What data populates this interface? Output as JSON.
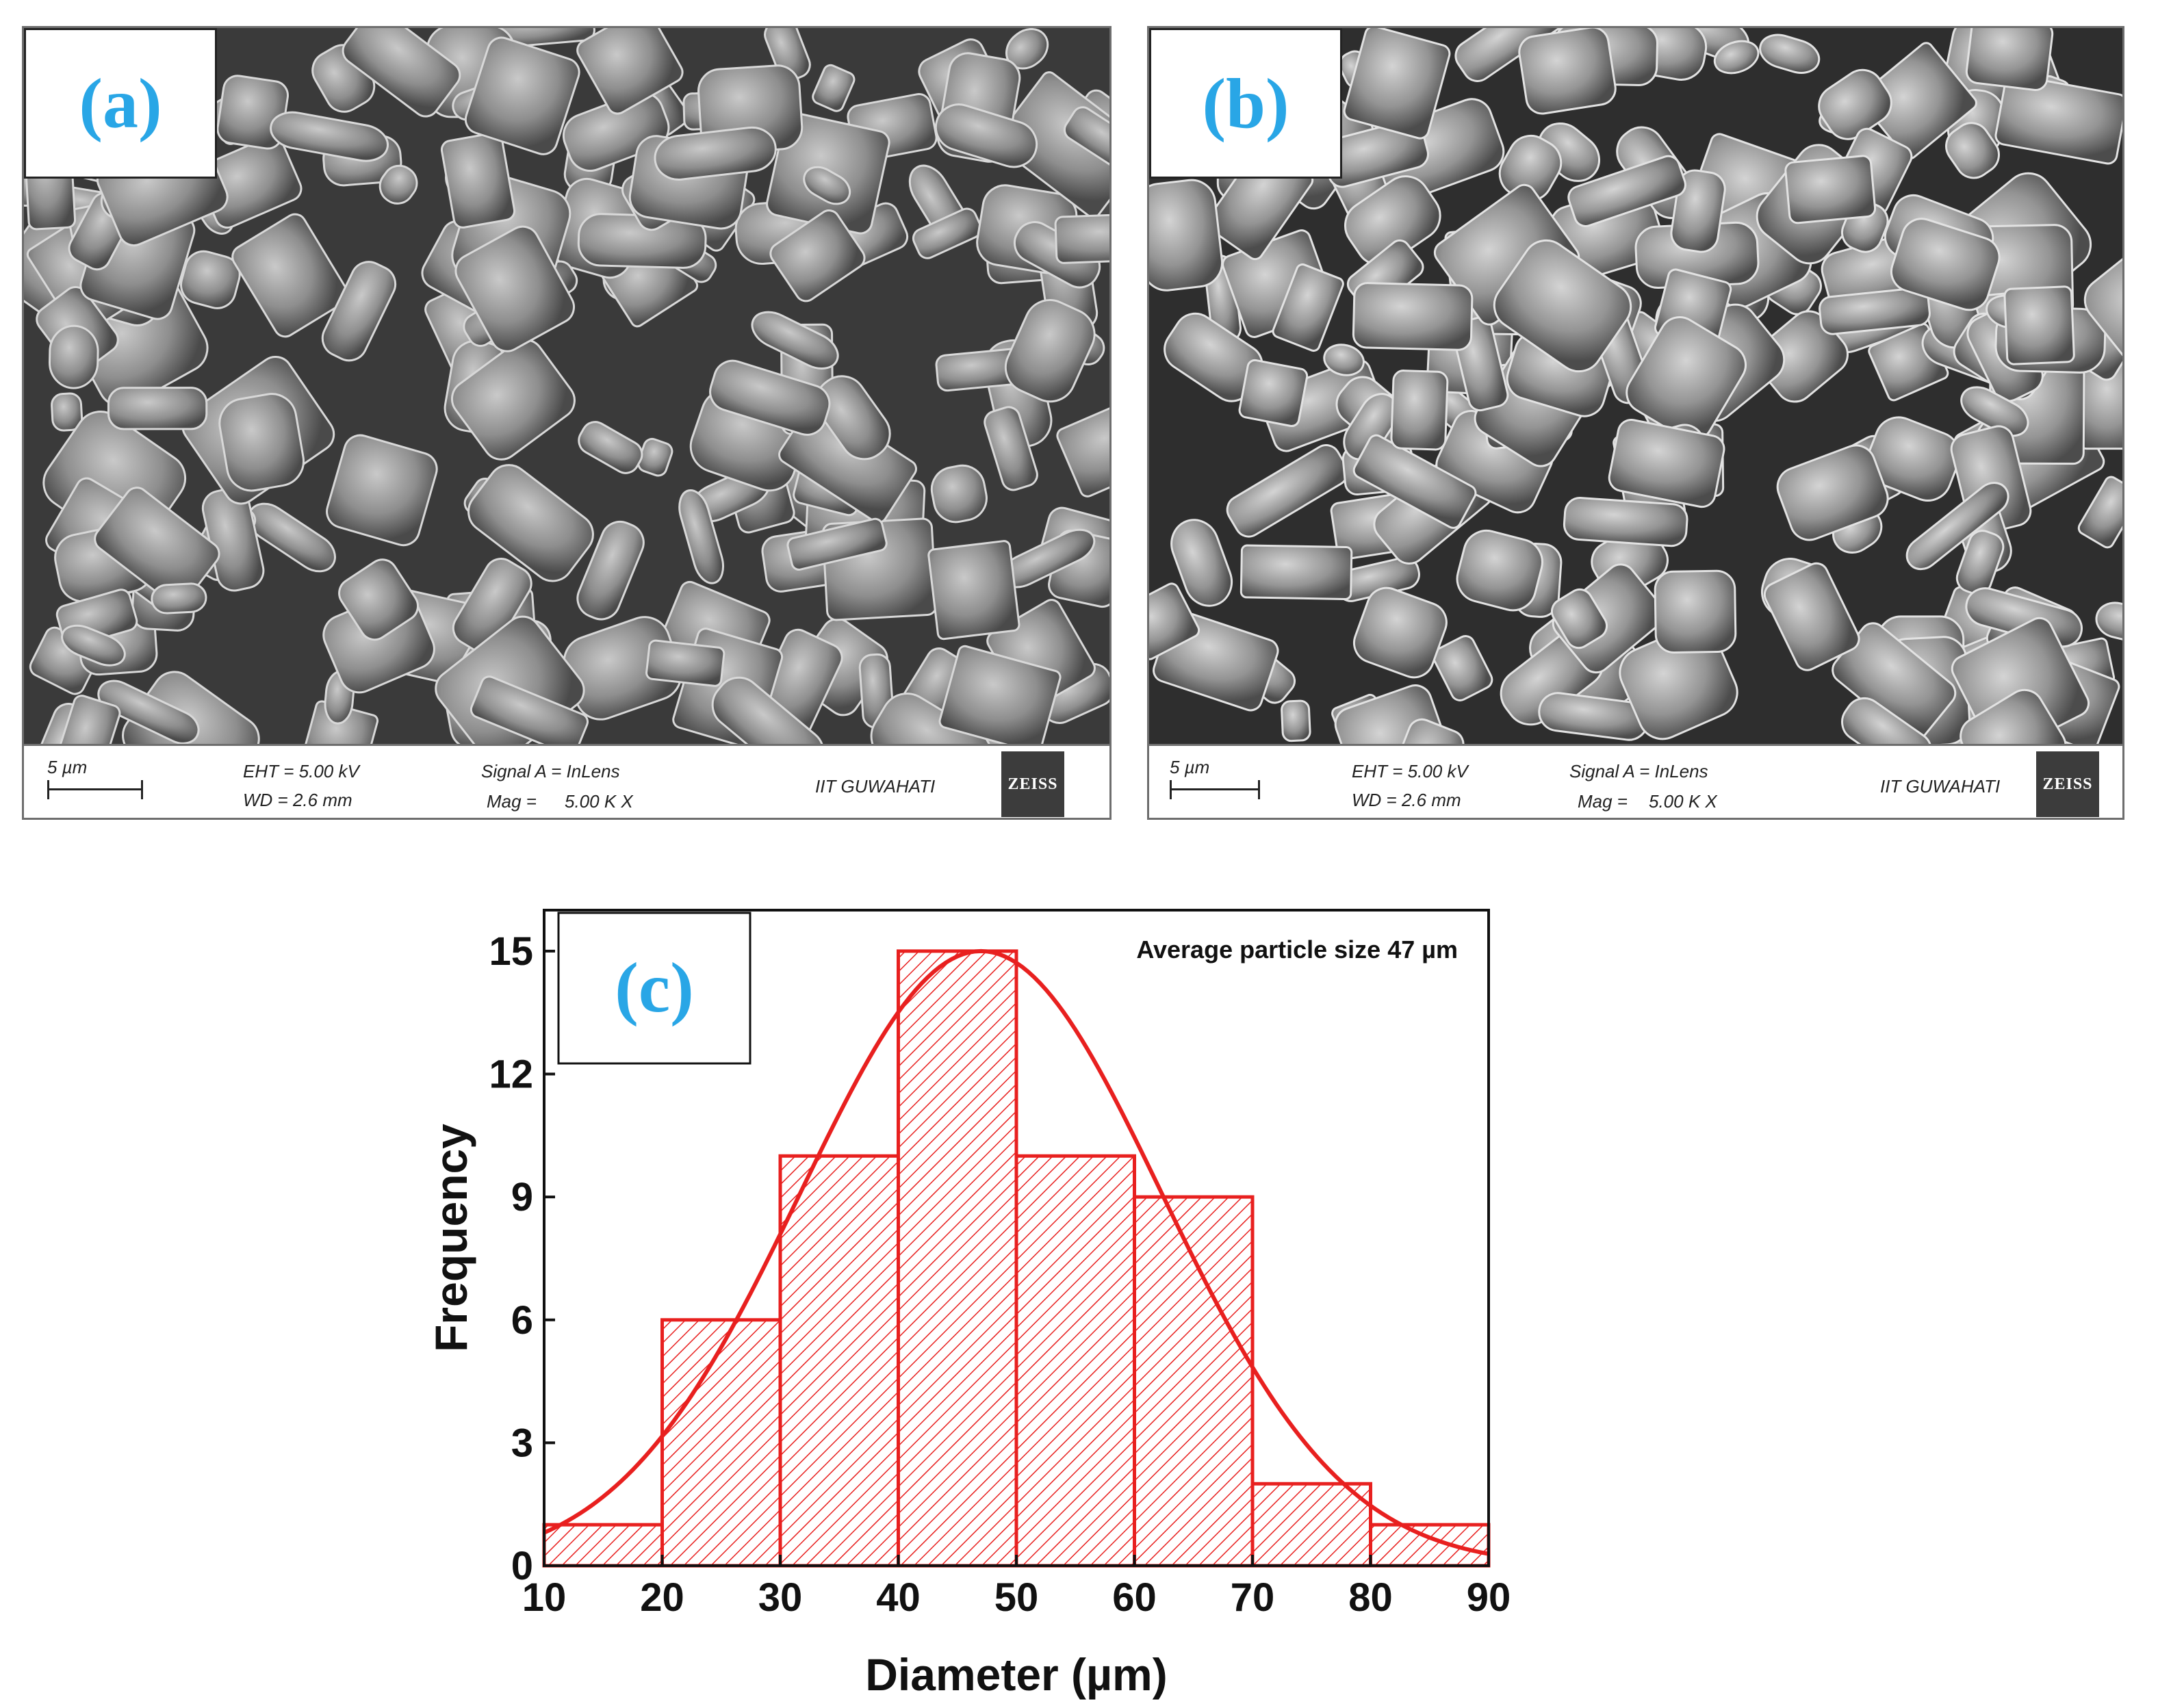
{
  "panels": [
    {
      "label": "(a)",
      "scale_bar": "5 µm",
      "eht": "EHT = 5.00 kV",
      "wd": "WD = 2.6 mm",
      "signal": "Signal A = InLens",
      "mag_label": "Mag =",
      "mag_value": "5.00 K X",
      "institute": "IIT GUWAHATI",
      "brand": "ZEISS"
    },
    {
      "label": "(b)",
      "scale_bar": "5 µm",
      "eht": "EHT = 5.00 kV",
      "wd": "WD = 2.6 mm",
      "signal": "Signal A = InLens",
      "mag_label": "Mag =",
      "mag_value": "5.00 K X",
      "institute": "IIT GUWAHATI",
      "brand": "ZEISS"
    }
  ],
  "colors": {
    "panel_label": "#29a6e6",
    "histogram": "#e8201f",
    "sem_gray": "#7a7a7a"
  },
  "chart_data": {
    "type": "bar",
    "panel_label": "(c)",
    "annotation": "Average particle size 47 µm",
    "xlabel": "Diameter (µm)",
    "ylabel": "Frequency",
    "xlim": [
      10,
      90
    ],
    "ylim": [
      0,
      16
    ],
    "xticks": [
      10,
      20,
      30,
      40,
      50,
      60,
      70,
      80,
      90
    ],
    "yticks": [
      0,
      3,
      6,
      9,
      12,
      15
    ],
    "bins": [
      {
        "from": 10,
        "to": 20,
        "value": 1
      },
      {
        "from": 20,
        "to": 30,
        "value": 6
      },
      {
        "from": 30,
        "to": 40,
        "value": 10
      },
      {
        "from": 40,
        "to": 50,
        "value": 15
      },
      {
        "from": 50,
        "to": 60,
        "value": 10
      },
      {
        "from": 60,
        "to": 70,
        "value": 9
      },
      {
        "from": 70,
        "to": 80,
        "value": 2
      },
      {
        "from": 80,
        "to": 90,
        "value": 1
      }
    ],
    "fit": {
      "type": "gaussian",
      "mean": 47,
      "sigma": 15.3,
      "peak": 15
    },
    "grid": false
  }
}
